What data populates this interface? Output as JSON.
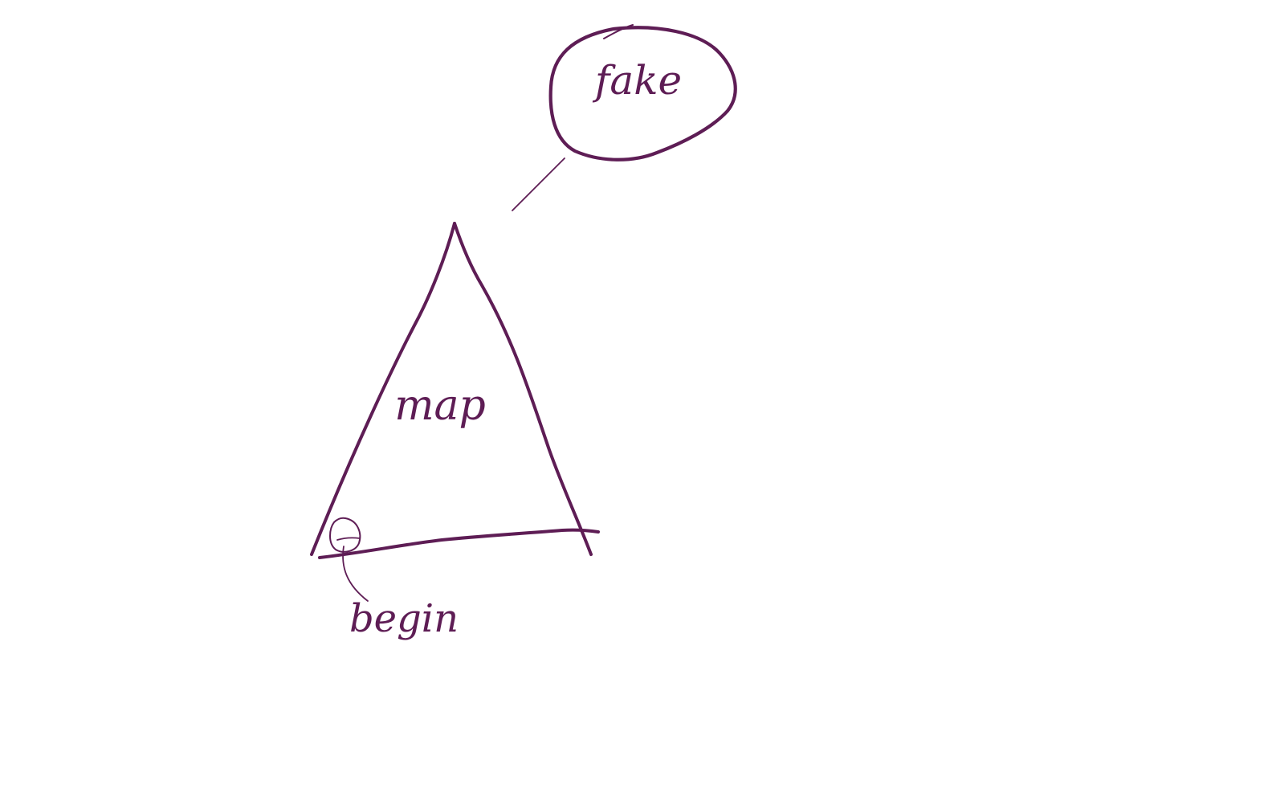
{
  "diagram": {
    "ink_color": "#5e1d55",
    "background": "#ffffff",
    "labels": {
      "bubble": "fake",
      "triangle": "map",
      "start_point": "begin"
    }
  }
}
